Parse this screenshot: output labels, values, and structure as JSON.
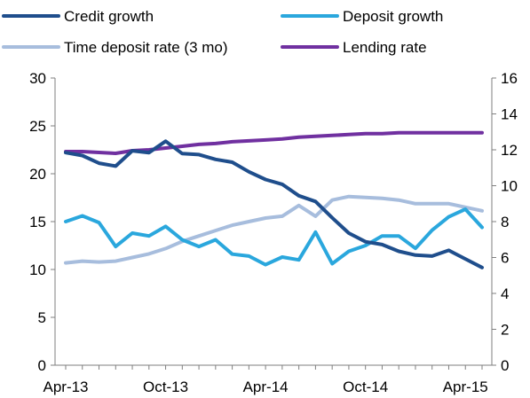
{
  "chart_data": {
    "type": "line",
    "title": "",
    "xlabel": "",
    "ylabel": "",
    "y2label": "",
    "left_axis": {
      "min": 0,
      "max": 30,
      "ticks": [
        "0",
        "5",
        "10",
        "15",
        "20",
        "25",
        "30"
      ]
    },
    "right_axis": {
      "min": 0,
      "max": 16,
      "ticks": [
        "0",
        "2",
        "4",
        "6",
        "8",
        "10",
        "12",
        "14",
        "16"
      ]
    },
    "x_axis": {
      "start_month": "Apr-13",
      "end_month": "Apr-15",
      "tick_labels": [
        "Apr-13",
        "Oct-13",
        "Apr-14",
        "Oct-14",
        "Apr-15"
      ]
    },
    "legend": {
      "placement": "top",
      "columns": 2
    },
    "series": [
      {
        "name": "Credit growth",
        "color": "#1f4e8c",
        "axis": "left",
        "values": [
          22.2,
          21.9,
          21.1,
          20.8,
          22.4,
          22.2,
          23.4,
          22.1,
          22.0,
          21.5,
          21.2,
          20.2,
          19.4,
          18.9,
          17.7,
          17.1,
          15.4,
          13.8,
          12.9,
          12.6,
          11.9,
          11.5,
          11.4,
          12.0,
          11.1,
          10.2
        ]
      },
      {
        "name": "Deposit growth",
        "color": "#2aa7dd",
        "axis": "left",
        "values": [
          15.0,
          15.6,
          14.9,
          12.4,
          13.8,
          13.5,
          14.5,
          13.1,
          12.4,
          13.1,
          11.6,
          11.4,
          10.5,
          11.3,
          11.0,
          13.9,
          10.6,
          11.9,
          12.5,
          13.5,
          13.5,
          12.2,
          14.1,
          15.5,
          16.3,
          14.4
        ]
      },
      {
        "name": "Time deposit rate (3 mo)",
        "color": "#a7bddd",
        "axis": "right",
        "values": [
          5.7,
          5.8,
          5.75,
          5.8,
          6.0,
          6.2,
          6.5,
          6.9,
          7.2,
          7.5,
          7.8,
          8.0,
          8.2,
          8.3,
          8.9,
          8.3,
          9.2,
          9.4,
          9.35,
          9.3,
          9.2,
          9.0,
          9.0,
          9.0,
          8.8,
          8.6
        ]
      },
      {
        "name": "Lending rate",
        "color": "#7030a0",
        "axis": "right",
        "values": [
          11.9,
          11.9,
          11.85,
          11.8,
          11.95,
          12.0,
          12.1,
          12.2,
          12.3,
          12.35,
          12.45,
          12.5,
          12.55,
          12.6,
          12.7,
          12.75,
          12.8,
          12.85,
          12.9,
          12.9,
          12.95,
          12.95,
          12.95,
          12.95,
          12.95,
          12.95
        ]
      }
    ]
  }
}
